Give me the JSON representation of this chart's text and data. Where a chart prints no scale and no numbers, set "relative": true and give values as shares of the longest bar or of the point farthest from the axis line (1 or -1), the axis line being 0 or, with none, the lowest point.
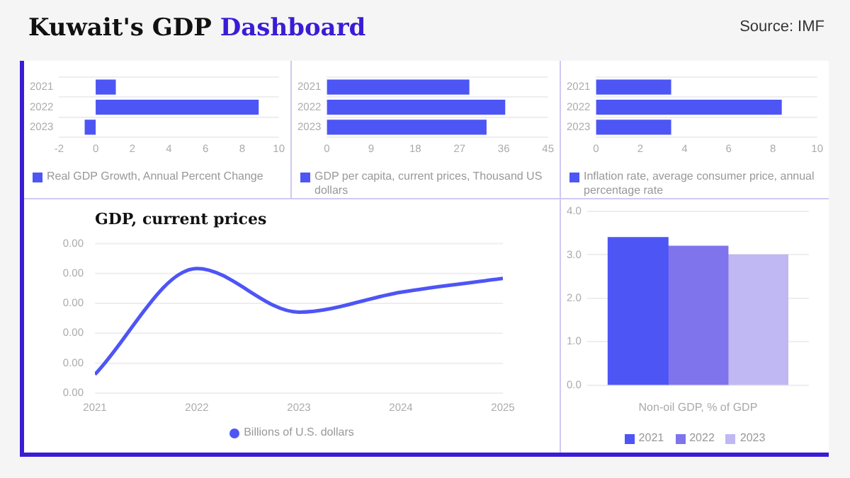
{
  "chart_data": [
    {
      "type": "bar",
      "title": "Kuwait's GDP Dashboard",
      "annotations": [
        "Source: IMF"
      ],
      "orientation": "horizontal",
      "categories": [
        "2021",
        "2022",
        "2023"
      ],
      "series": [
        {
          "name": "Real GDP Growth, Annual Percent Change",
          "color": "#4d55f5",
          "values": [
            1.1,
            8.9,
            -0.6
          ]
        }
      ],
      "xlim": [
        -2,
        10
      ],
      "xticks": [
        -2,
        0,
        2,
        4,
        6,
        8,
        10
      ],
      "grid": "y",
      "legend": "bottom"
    },
    {
      "type": "bar",
      "orientation": "horizontal",
      "categories": [
        "2021",
        "2022",
        "2023"
      ],
      "series": [
        {
          "name": "GDP per capita, current prices, Thousand US dollars",
          "color": "#4d55f5",
          "values": [
            29,
            36.3,
            32.5
          ]
        }
      ],
      "xlim": [
        0,
        45
      ],
      "xticks": [
        0,
        9,
        18,
        27,
        36,
        45
      ],
      "grid": "y",
      "legend": "bottom"
    },
    {
      "type": "bar",
      "orientation": "horizontal",
      "categories": [
        "2021",
        "2022",
        "2023"
      ],
      "series": [
        {
          "name": "Inflation rate, average consumer price, annual percentage rate",
          "color": "#4d55f5",
          "values": [
            3.4,
            8.4,
            3.4
          ]
        }
      ],
      "xlim": [
        0,
        10
      ],
      "xticks": [
        0,
        2,
        4,
        6,
        8,
        10
      ],
      "grid": "y",
      "legend": "bottom"
    },
    {
      "type": "line",
      "title": "GDP, current prices",
      "x": [
        2021,
        2022,
        2023,
        2024,
        2025
      ],
      "relative": true,
      "annotations": [
        "0.00",
        "0.00",
        "0.00",
        "0.00",
        "0.00",
        "0.00"
      ],
      "series": [
        {
          "name": "Billions of U.S. dollars",
          "color": "#4d55f5",
          "values": [
            0.15,
            1,
            0.65,
            0.81,
            0.92
          ]
        }
      ],
      "xlim": [
        2021,
        2025
      ],
      "xticks": [
        2021,
        2022,
        2023,
        2024,
        2025
      ],
      "grid": "y",
      "marker": "none",
      "legend": "bottom"
    },
    {
      "type": "bar",
      "categories": [
        null,
        null,
        null
      ],
      "xlabel": "Non-oil GDP, % of GDP",
      "series": [
        {
          "name": "2021",
          "color": "#4d55f5",
          "values": [
            3.4,
            null,
            null
          ]
        },
        {
          "name": "2022",
          "color": "#7f74ec",
          "values": [
            null,
            3.2,
            null
          ]
        },
        {
          "name": "2023",
          "color": "#c0b8f3",
          "values": [
            null,
            null,
            3.0
          ]
        }
      ],
      "ylim": [
        0,
        4
      ],
      "yticks": [
        {
          "value": 0,
          "label": "0.0"
        },
        {
          "value": 1,
          "label": "1.0"
        },
        {
          "value": 2,
          "label": "2.0"
        },
        {
          "value": 3,
          "label": "3.0"
        },
        {
          "value": 4,
          "label": "4.0"
        }
      ],
      "grid": "y",
      "legend": "bottom"
    }
  ]
}
